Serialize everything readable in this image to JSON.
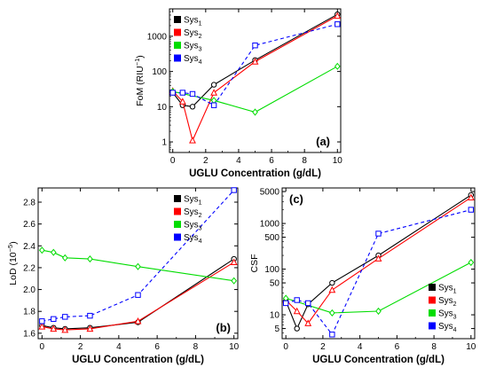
{
  "chart_data": [
    {
      "id": "a",
      "type": "line",
      "panel_label": "(a)",
      "xlabel": "UGLU Concentration (g/dL)",
      "ylabel": "FoM (RIU",
      "ylabel_sup": "−1",
      "ylabel_end": ")",
      "yscale": "log",
      "xlim": [
        -0.2,
        10.2
      ],
      "ylim": [
        0.5,
        6000
      ],
      "xticks": [
        0,
        2,
        4,
        6,
        8,
        10
      ],
      "yticks": [
        1,
        10,
        100,
        1000
      ],
      "legend_position": "top-left",
      "series": [
        {
          "name": "Sys",
          "sub": "1",
          "color": "#000000",
          "marker": "circle",
          "dash": false,
          "x": [
            0,
            0.6,
            1.2,
            2.5,
            5,
            10
          ],
          "y": [
            25,
            11,
            10,
            42,
            210,
            4200
          ]
        },
        {
          "name": "Sys",
          "sub": "2",
          "color": "#ff0000",
          "marker": "triangle",
          "dash": false,
          "x": [
            0,
            0.6,
            1.2,
            2.5,
            5,
            10
          ],
          "y": [
            28,
            14,
            1.1,
            25,
            190,
            3800
          ]
        },
        {
          "name": "Sys",
          "sub": "3",
          "color": "#00dd00",
          "marker": "diamond",
          "dash": false,
          "x": [
            0,
            2.5,
            5,
            10
          ],
          "y": [
            27,
            15,
            7,
            140
          ]
        },
        {
          "name": "Sys",
          "sub": "4",
          "color": "#0000ff",
          "marker": "square",
          "dash": true,
          "x": [
            0,
            0.6,
            1.2,
            2.5,
            5,
            10
          ],
          "y": [
            25,
            25,
            23,
            11,
            550,
            2200
          ]
        }
      ]
    },
    {
      "id": "b",
      "type": "line",
      "panel_label": "(b)",
      "xlabel": "UGLU Concentration (g/dL)",
      "ylabel": "LoD (10",
      "ylabel_sup": "−5",
      "ylabel_end": ")",
      "yscale": "linear",
      "xlim": [
        -0.2,
        10.2
      ],
      "ylim": [
        1.55,
        2.93
      ],
      "xticks": [
        0,
        2,
        4,
        6,
        8,
        10
      ],
      "yticks": [
        1.6,
        1.8,
        2.0,
        2.2,
        2.4,
        2.6,
        2.8
      ],
      "ytick_labels": [
        "1.6",
        "1.8",
        "2.0",
        "2.2",
        "2.4",
        "2.6",
        "2.8"
      ],
      "legend_position": "top-right",
      "series": [
        {
          "name": "Sys",
          "sub": "1",
          "color": "#000000",
          "marker": "circle",
          "dash": false,
          "x": [
            0,
            0.6,
            1.2,
            2.5,
            5,
            10
          ],
          "y": [
            1.67,
            1.65,
            1.64,
            1.65,
            1.7,
            2.28
          ]
        },
        {
          "name": "Sys",
          "sub": "2",
          "color": "#ff0000",
          "marker": "triangle",
          "dash": false,
          "x": [
            0,
            0.6,
            1.2,
            2.5,
            5,
            10
          ],
          "y": [
            1.66,
            1.64,
            1.63,
            1.64,
            1.71,
            2.25
          ]
        },
        {
          "name": "Sys",
          "sub": "3",
          "color": "#00dd00",
          "marker": "diamond",
          "dash": false,
          "x": [
            0,
            0.6,
            1.2,
            2.5,
            5,
            10
          ],
          "y": [
            2.36,
            2.34,
            2.29,
            2.28,
            2.21,
            2.08
          ]
        },
        {
          "name": "Sys",
          "sub": "4",
          "color": "#0000ff",
          "marker": "square",
          "dash": true,
          "x": [
            0,
            0.6,
            1.2,
            2.5,
            5,
            10
          ],
          "y": [
            1.71,
            1.73,
            1.75,
            1.76,
            1.95,
            2.91
          ]
        }
      ]
    },
    {
      "id": "c",
      "type": "line",
      "panel_label": "(c)",
      "xlabel": "UGLU Concentration (g/dL)",
      "ylabel": "CSF",
      "ylabel_sup": "",
      "ylabel_end": "",
      "yscale": "log",
      "xlim": [
        -0.2,
        10.2
      ],
      "ylim": [
        3,
        6000
      ],
      "xticks": [
        0,
        2,
        4,
        6,
        8,
        10
      ],
      "yticks": [
        5,
        10,
        50,
        100,
        500,
        1000,
        5000
      ],
      "legend_position": "bottom-right",
      "series": [
        {
          "name": "Sys",
          "sub": "1",
          "color": "#000000",
          "marker": "circle",
          "dash": false,
          "x": [
            0,
            0.6,
            1.2,
            2.5,
            5,
            10
          ],
          "y": [
            20,
            5,
            17,
            50,
            200,
            4200
          ]
        },
        {
          "name": "Sys",
          "sub": "2",
          "color": "#ff0000",
          "marker": "triangle",
          "dash": false,
          "x": [
            0,
            0.6,
            1.2,
            2.5,
            5,
            10
          ],
          "y": [
            21,
            12,
            6.5,
            35,
            170,
            3700
          ]
        },
        {
          "name": "Sys",
          "sub": "3",
          "color": "#00dd00",
          "marker": "diamond",
          "dash": false,
          "x": [
            0,
            2.5,
            5,
            10
          ],
          "y": [
            23,
            11,
            12,
            140
          ]
        },
        {
          "name": "Sys",
          "sub": "4",
          "color": "#0000ff",
          "marker": "square",
          "dash": true,
          "x": [
            0,
            0.6,
            1.2,
            2.5,
            5,
            10
          ],
          "y": [
            18,
            21,
            18,
            3.7,
            600,
            2000
          ]
        }
      ]
    }
  ]
}
